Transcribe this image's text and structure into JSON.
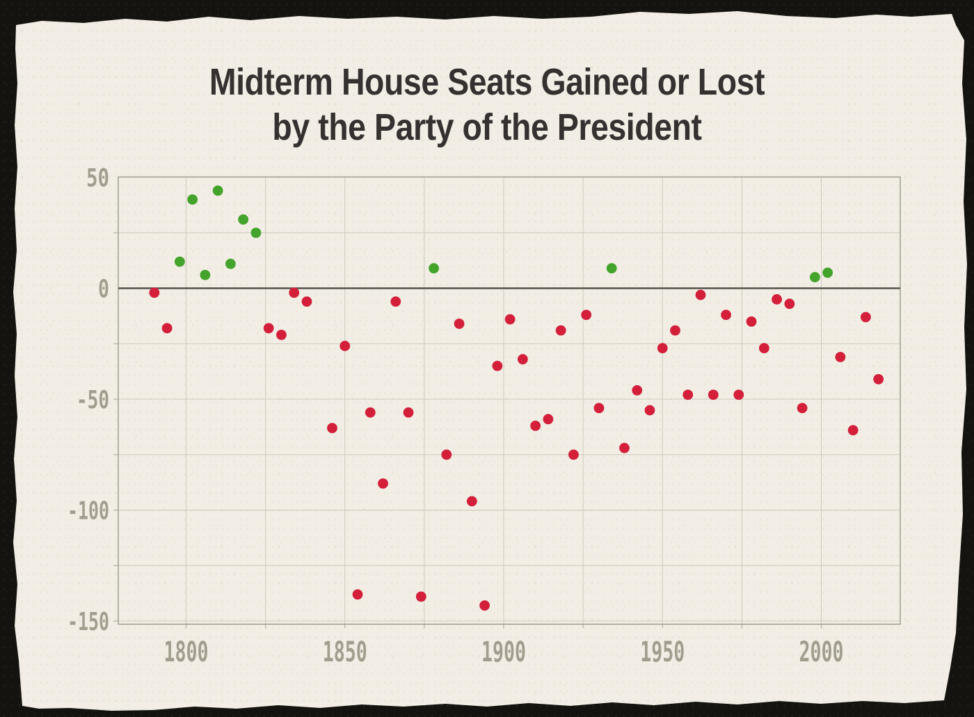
{
  "title": {
    "line1": "Midterm House Seats Gained or Lost",
    "line2": "by the Party of the President"
  },
  "colors": {
    "paper": "#f2eee5",
    "frame": "#151310",
    "title_text": "#353130",
    "axis_label": "#a19e8f",
    "gridline": "#cdc9bd",
    "plot_border": "#9a978b",
    "zero_line": "#53504a",
    "gain_dot": "#43a32a",
    "loss_dot": "#d41f3a"
  },
  "axes": {
    "y_tick_labels": [
      "50",
      "0",
      "-50",
      "-100",
      "-150"
    ],
    "y_tick_values": [
      50,
      0,
      -50,
      -100,
      -150
    ],
    "x_tick_labels": [
      "1800",
      "1850",
      "1900",
      "1950",
      "2000"
    ],
    "x_tick_years": [
      1800,
      1850,
      1900,
      1950,
      2000
    ]
  },
  "chart_data": {
    "type": "scatter",
    "title": "Midterm House Seats Gained or Lost by the Party of the President",
    "unit": "House seats",
    "x_range": [
      1779,
      2025
    ],
    "y_range": [
      -152,
      50
    ],
    "grid_step_years": 25,
    "grid_step_seats": 25,
    "positive_color_meaning": "seats gained by president's party",
    "negative_color_meaning": "seats lost by president's party",
    "points": [
      {
        "year": 1790,
        "seats": -2
      },
      {
        "year": 1794,
        "seats": -18
      },
      {
        "year": 1798,
        "seats": 12
      },
      {
        "year": 1802,
        "seats": 40
      },
      {
        "year": 1806,
        "seats": 6
      },
      {
        "year": 1810,
        "seats": 44
      },
      {
        "year": 1814,
        "seats": 11
      },
      {
        "year": 1818,
        "seats": 31
      },
      {
        "year": 1822,
        "seats": 25
      },
      {
        "year": 1826,
        "seats": -18
      },
      {
        "year": 1830,
        "seats": -21
      },
      {
        "year": 1834,
        "seats": -2
      },
      {
        "year": 1838,
        "seats": -6
      },
      {
        "year": 1846,
        "seats": -63
      },
      {
        "year": 1850,
        "seats": -26
      },
      {
        "year": 1854,
        "seats": -138
      },
      {
        "year": 1858,
        "seats": -56
      },
      {
        "year": 1862,
        "seats": -88
      },
      {
        "year": 1866,
        "seats": -6
      },
      {
        "year": 1870,
        "seats": -56
      },
      {
        "year": 1874,
        "seats": -139
      },
      {
        "year": 1878,
        "seats": 9
      },
      {
        "year": 1882,
        "seats": -75
      },
      {
        "year": 1886,
        "seats": -16
      },
      {
        "year": 1890,
        "seats": -96
      },
      {
        "year": 1894,
        "seats": -143
      },
      {
        "year": 1898,
        "seats": -35
      },
      {
        "year": 1902,
        "seats": -14
      },
      {
        "year": 1906,
        "seats": -32
      },
      {
        "year": 1910,
        "seats": -62
      },
      {
        "year": 1914,
        "seats": -59
      },
      {
        "year": 1918,
        "seats": -19
      },
      {
        "year": 1922,
        "seats": -75
      },
      {
        "year": 1926,
        "seats": -12
      },
      {
        "year": 1930,
        "seats": -54
      },
      {
        "year": 1934,
        "seats": 9
      },
      {
        "year": 1938,
        "seats": -72
      },
      {
        "year": 1942,
        "seats": -46
      },
      {
        "year": 1946,
        "seats": -55
      },
      {
        "year": 1950,
        "seats": -27
      },
      {
        "year": 1954,
        "seats": -19
      },
      {
        "year": 1958,
        "seats": -48
      },
      {
        "year": 1962,
        "seats": -3
      },
      {
        "year": 1966,
        "seats": -48
      },
      {
        "year": 1970,
        "seats": -12
      },
      {
        "year": 1974,
        "seats": -48
      },
      {
        "year": 1978,
        "seats": -15
      },
      {
        "year": 1982,
        "seats": -27
      },
      {
        "year": 1986,
        "seats": -5
      },
      {
        "year": 1990,
        "seats": -7
      },
      {
        "year": 1994,
        "seats": -54
      },
      {
        "year": 1998,
        "seats": 5
      },
      {
        "year": 2002,
        "seats": 7
      },
      {
        "year": 2006,
        "seats": -31
      },
      {
        "year": 2010,
        "seats": -64
      },
      {
        "year": 2014,
        "seats": -13
      },
      {
        "year": 2018,
        "seats": -41
      }
    ]
  }
}
